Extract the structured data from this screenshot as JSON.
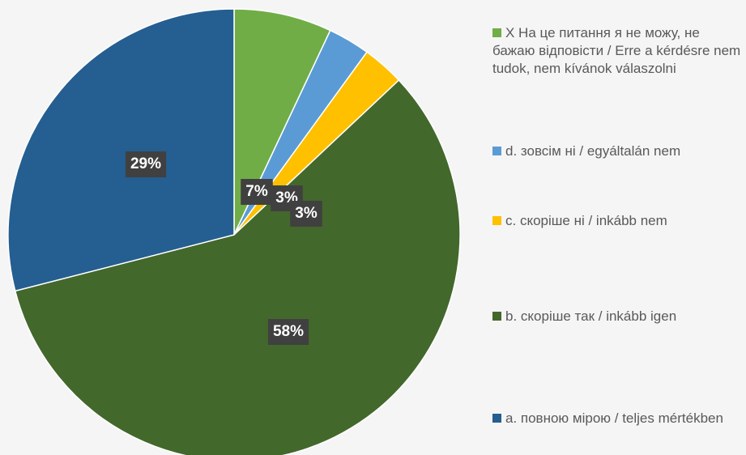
{
  "chart_data": {
    "type": "pie",
    "categories": [
      "X На це питання я не можу, не бажаю відповісти / Erre a kérdésre nem tudok, nem kívánok válaszolni",
      "d. зовсім ні / egyáltalán nem",
      "c. скоріше ні / inkább nem",
      "b. скоріше так / inkább igen",
      "a. повною мірою / teljes mértékben"
    ],
    "values": [
      7,
      3,
      3,
      58,
      29
    ],
    "value_labels": [
      "7%",
      "3%",
      "3%",
      "58%",
      "29%"
    ],
    "colors": [
      "#70ad47",
      "#5b9bd5",
      "#ffc000",
      "#43682b",
      "#255e91"
    ],
    "legend": "right"
  }
}
